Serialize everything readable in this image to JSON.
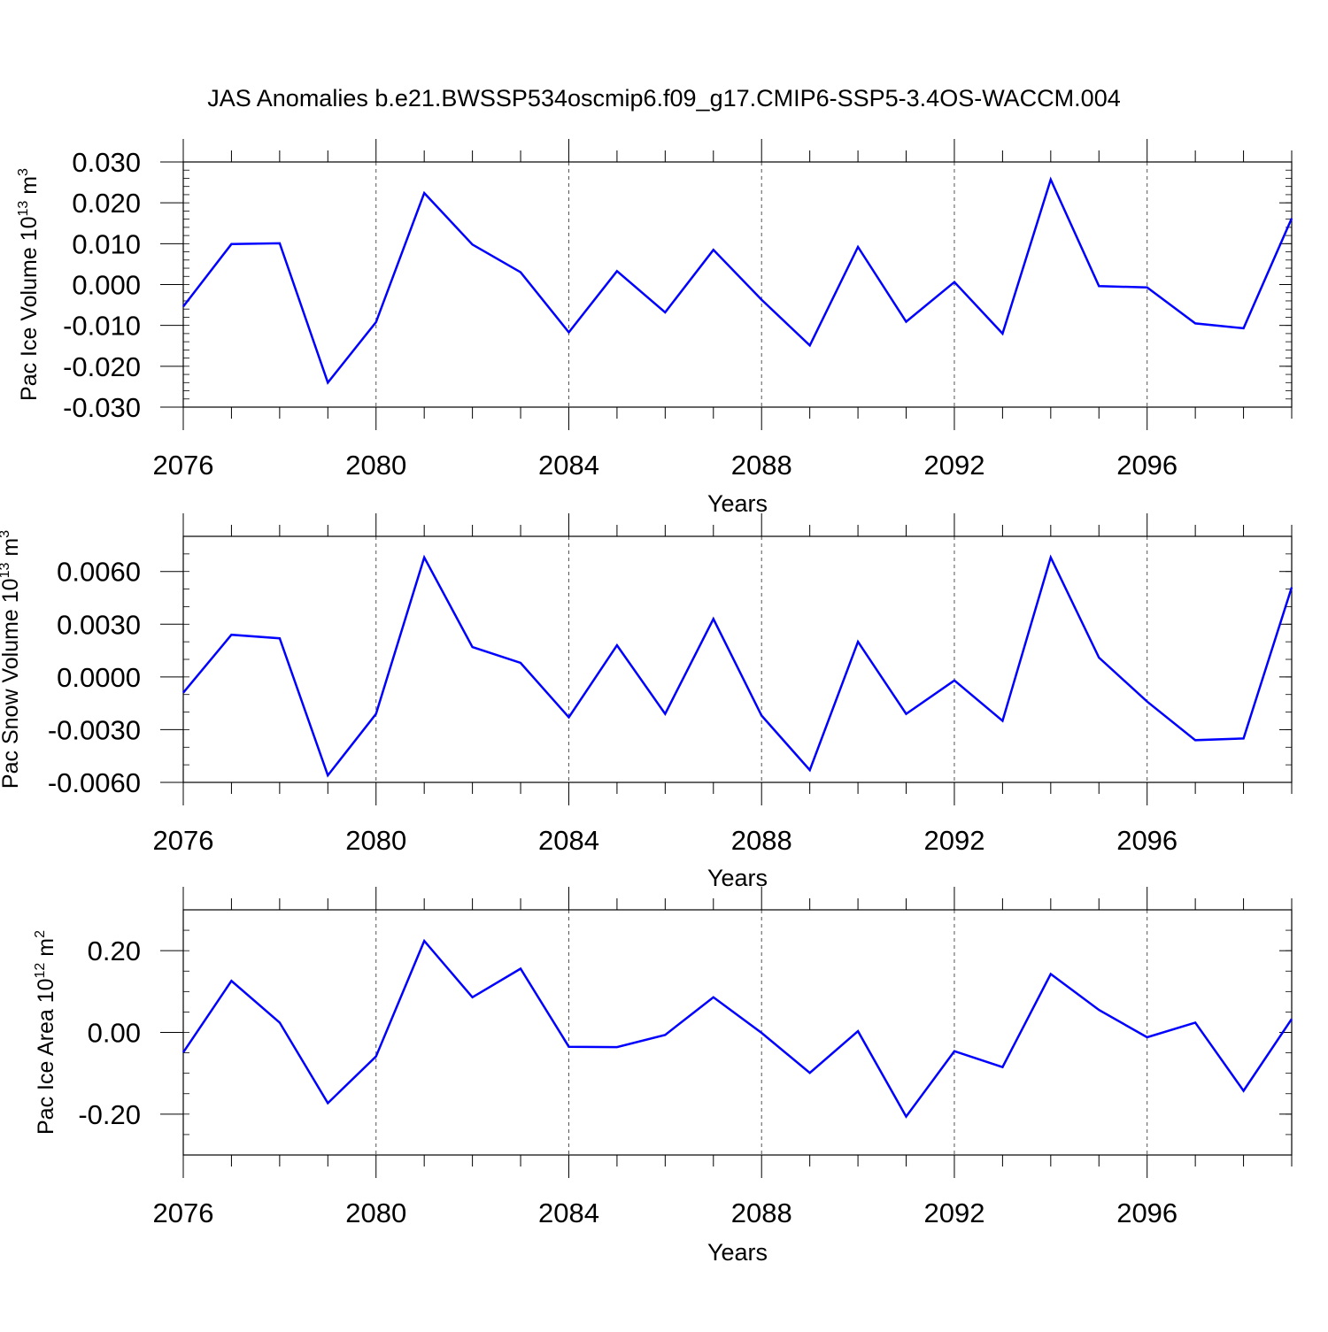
{
  "title": "JAS Anomalies b.e21.BWSSP534oscmip6.f09_g17.CMIP6-SSP5-3.4OS-WACCM.004",
  "line_color": "#0000ff",
  "chart_data": [
    {
      "type": "line",
      "ylabel_main": "Pac Ice Volume 10",
      "ylabel_exp": "13",
      "ylabel_unit": " m",
      "ylabel_unit_exp": "3",
      "xlabel": "Years",
      "xlim": [
        2076,
        2099
      ],
      "ylim": [
        -0.03,
        0.03
      ],
      "yticks": [
        -0.03,
        -0.02,
        -0.01,
        0.0,
        0.01,
        0.02,
        0.03
      ],
      "ytick_labels": [
        "-0.030",
        "-0.020",
        "-0.010",
        "0.000",
        "0.010",
        "0.020",
        "0.030"
      ],
      "xticks": [
        2076,
        2080,
        2084,
        2088,
        2092,
        2096
      ],
      "xtick_labels": [
        "2076",
        "2080",
        "2084",
        "2088",
        "2092",
        "2096"
      ],
      "x": [
        2076,
        2077,
        2078,
        2079,
        2080,
        2081,
        2082,
        2083,
        2084,
        2085,
        2086,
        2087,
        2088,
        2089,
        2090,
        2091,
        2092,
        2093,
        2094,
        2095,
        2096,
        2097,
        2098,
        2099
      ],
      "values": [
        -0.0054,
        0.0099,
        0.0101,
        -0.024,
        -0.0092,
        0.0224,
        0.0098,
        0.003,
        -0.0117,
        0.0033,
        -0.0068,
        0.0085,
        -0.0037,
        -0.0149,
        0.0092,
        -0.0091,
        0.0006,
        -0.012,
        0.0257,
        -0.0004,
        -0.0007,
        -0.0095,
        -0.0107,
        0.0162
      ]
    },
    {
      "type": "line",
      "ylabel_main": "Pac Snow Volume 10",
      "ylabel_exp": "13",
      "ylabel_unit": " m",
      "ylabel_unit_exp": "3",
      "xlabel": "Years",
      "xlim": [
        2076,
        2099
      ],
      "ylim": [
        -0.006,
        0.008
      ],
      "yticks": [
        -0.006,
        -0.003,
        0.0,
        0.003,
        0.006
      ],
      "ytick_labels": [
        "-0.0060",
        "-0.0030",
        "0.0000",
        "0.0030",
        "0.0060"
      ],
      "xticks": [
        2076,
        2080,
        2084,
        2088,
        2092,
        2096
      ],
      "xtick_labels": [
        "2076",
        "2080",
        "2084",
        "2088",
        "2092",
        "2096"
      ],
      "x": [
        2076,
        2077,
        2078,
        2079,
        2080,
        2081,
        2082,
        2083,
        2084,
        2085,
        2086,
        2087,
        2088,
        2089,
        2090,
        2091,
        2092,
        2093,
        2094,
        2095,
        2096,
        2097,
        2098,
        2099
      ],
      "values": [
        -0.0009,
        0.0024,
        0.0022,
        -0.0056,
        -0.0021,
        0.0068,
        0.0017,
        0.0008,
        -0.0023,
        0.0018,
        -0.0021,
        0.0033,
        -0.0022,
        -0.0053,
        0.002,
        -0.0021,
        -0.0002,
        -0.0025,
        0.0068,
        0.0011,
        -0.0014,
        -0.0036,
        -0.0035,
        0.0051
      ]
    },
    {
      "type": "line",
      "ylabel_main": "Pac Ice Area 10",
      "ylabel_exp": "12",
      "ylabel_unit": " m",
      "ylabel_unit_exp": "2",
      "xlabel": "Years",
      "xlim": [
        2076,
        2099
      ],
      "ylim": [
        -0.3,
        0.3
      ],
      "yticks": [
        -0.2,
        0.0,
        0.2
      ],
      "ytick_labels": [
        "-0.20",
        "0.00",
        "0.20"
      ],
      "xticks": [
        2076,
        2080,
        2084,
        2088,
        2092,
        2096
      ],
      "xtick_labels": [
        "2076",
        "2080",
        "2084",
        "2088",
        "2092",
        "2096"
      ],
      "x": [
        2076,
        2077,
        2078,
        2079,
        2080,
        2081,
        2082,
        2083,
        2084,
        2085,
        2086,
        2087,
        2088,
        2089,
        2090,
        2091,
        2092,
        2093,
        2094,
        2095,
        2096,
        2097,
        2098,
        2099
      ],
      "values": [
        -0.049,
        0.126,
        0.024,
        -0.173,
        -0.059,
        0.224,
        0.086,
        0.156,
        -0.035,
        -0.036,
        -0.006,
        0.086,
        -0.001,
        -0.099,
        0.003,
        -0.206,
        -0.046,
        -0.085,
        0.143,
        0.055,
        -0.012,
        0.024,
        -0.143,
        0.033
      ]
    }
  ]
}
